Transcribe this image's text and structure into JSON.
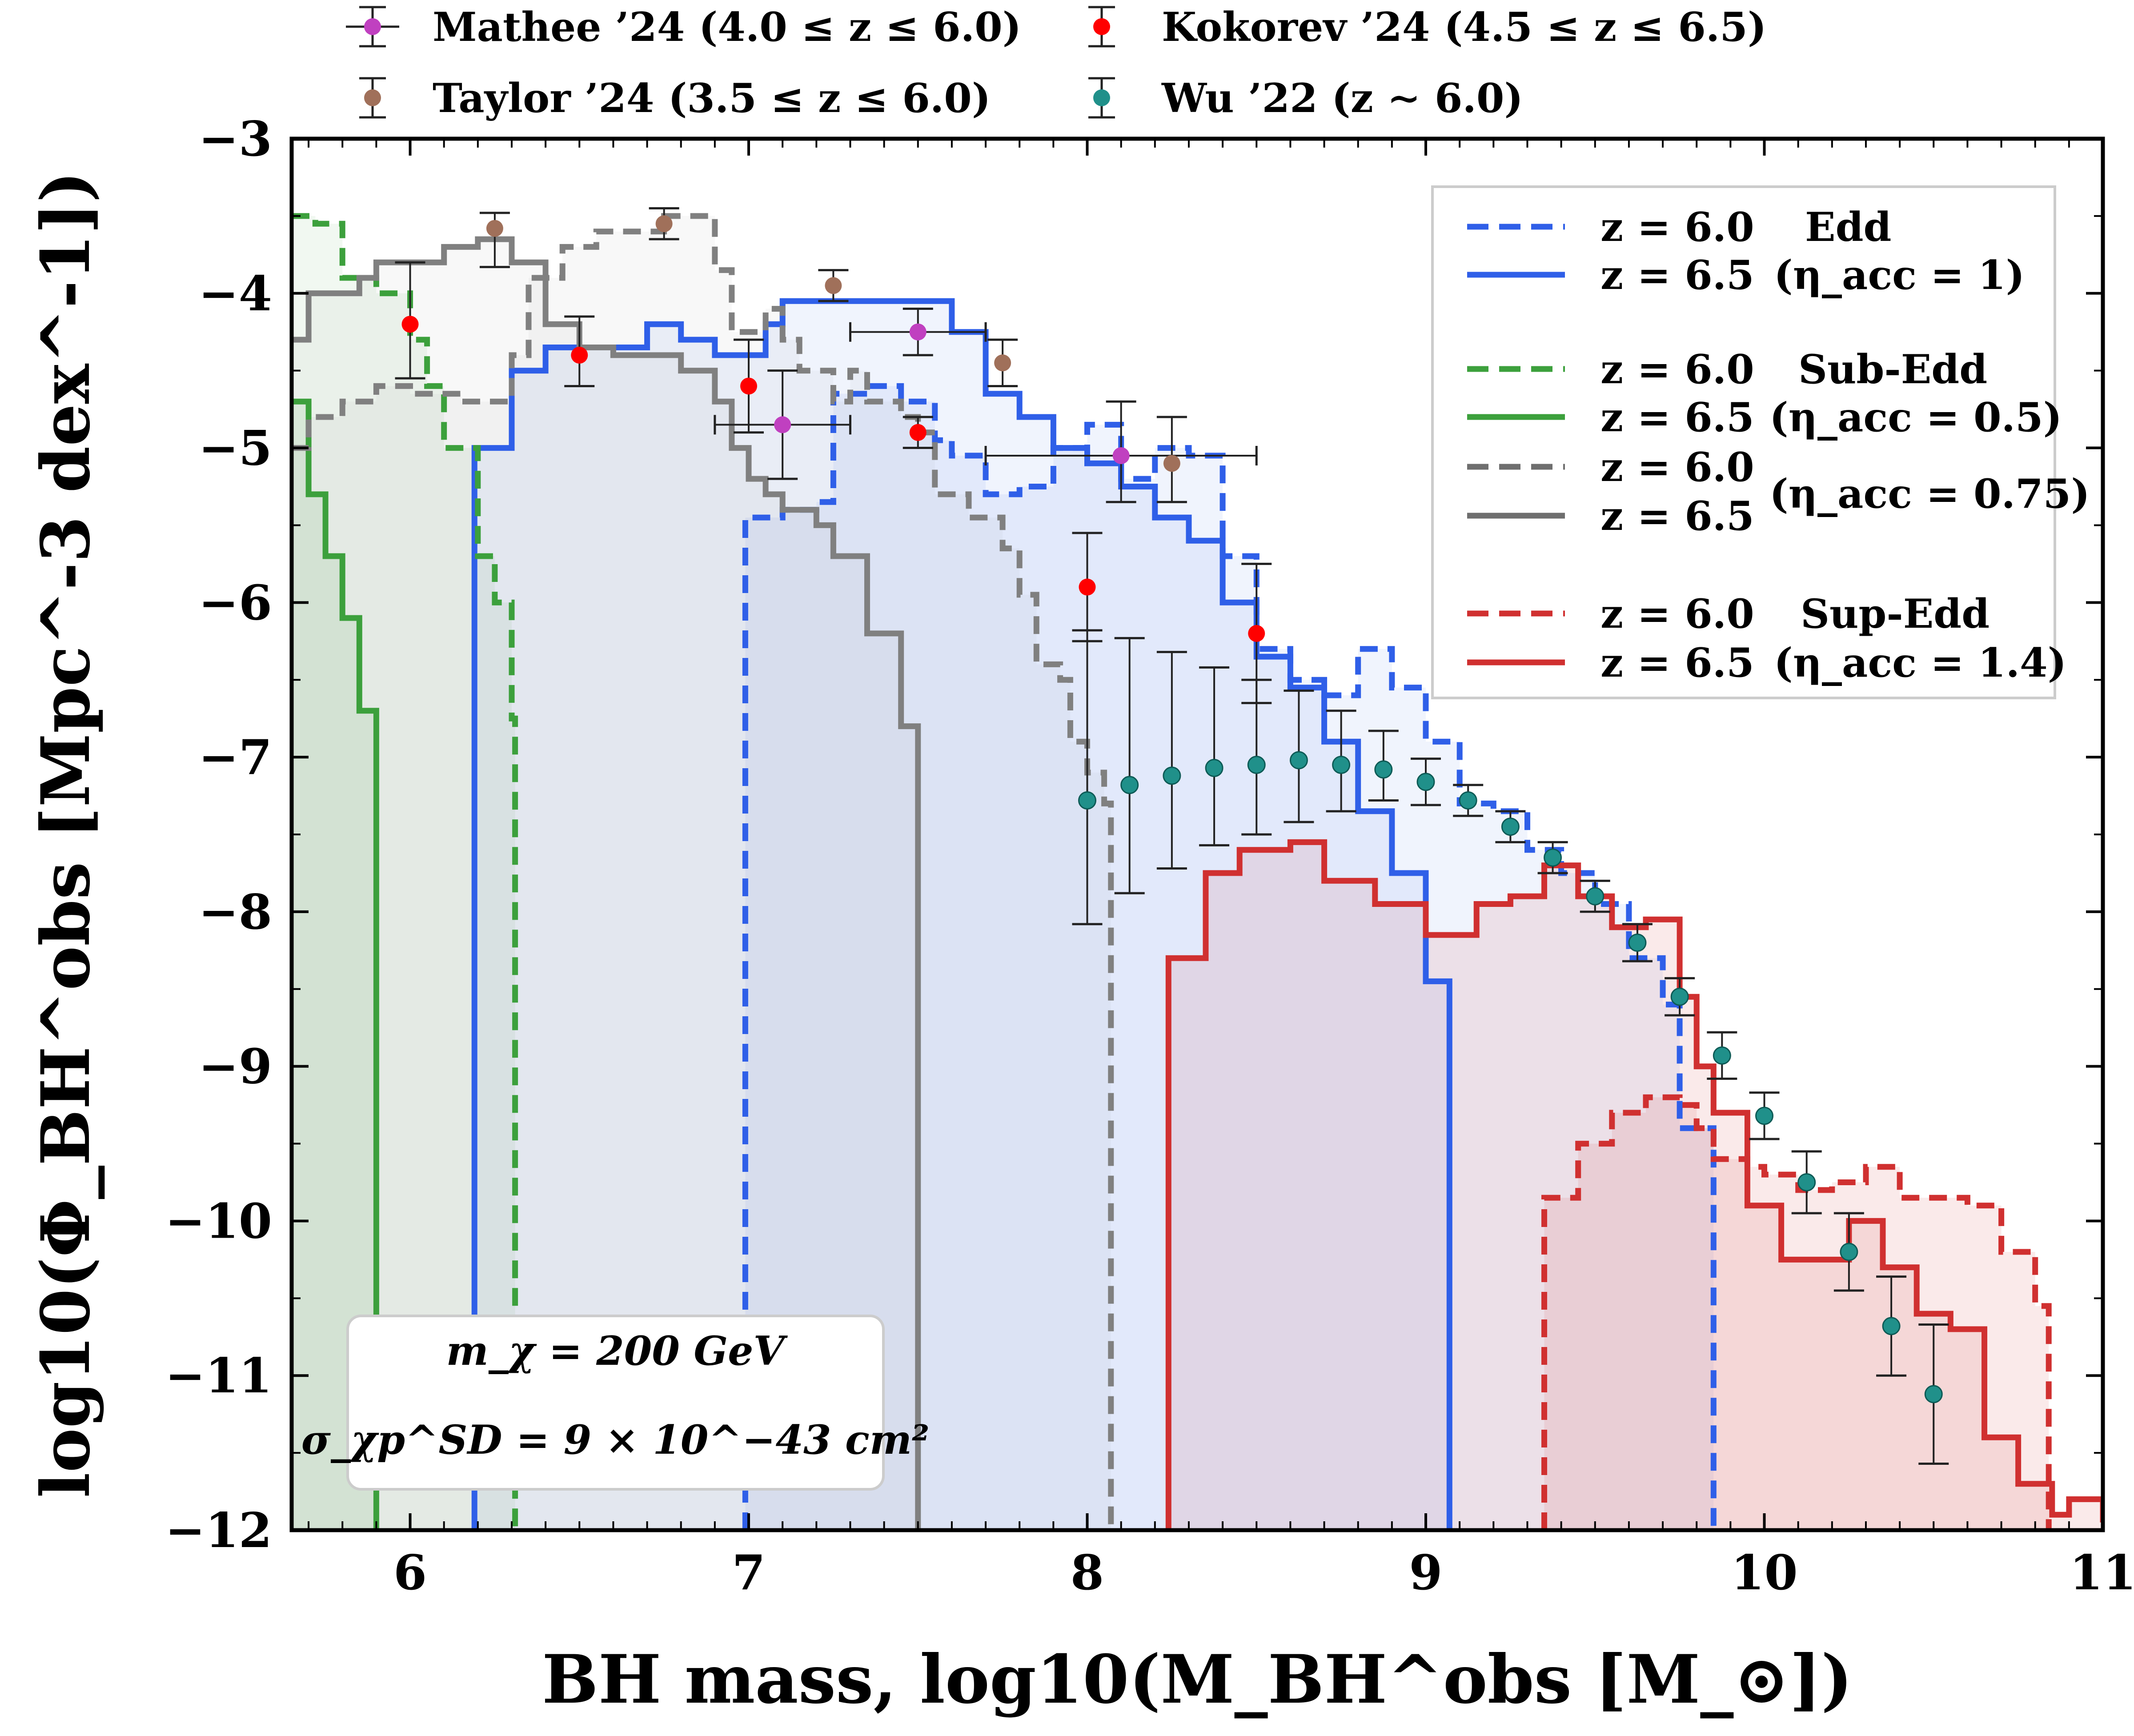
{
  "chart_data": {
    "type": "line",
    "xlabel": "BH mass, log10(M_BH^obs [M_⊙])",
    "ylabel": "log10(Φ_BH^obs [Mpc^-3 dex^-1])",
    "xlim": [
      5.65,
      11.0
    ],
    "ylim": [
      -12,
      -3
    ],
    "x_ticks": [
      "6",
      "7",
      "8",
      "9",
      "10",
      "11"
    ],
    "y_ticks": [
      "−3",
      "−4",
      "−5",
      "−6",
      "−7",
      "−8",
      "−9",
      "−10",
      "−11",
      "−12"
    ],
    "annotation": {
      "line1": "m_χ = 200 GeV",
      "line2": "σ_χp^SD = 9 × 10^−43 cm²"
    },
    "legend_top": [
      {
        "label": "Mathee ’24 (4.0 ≤ z ≤ 6.0)",
        "color": "#c040c0"
      },
      {
        "label": "Kokorev ’24 (4.5 ≤ z ≤ 6.5)",
        "color": "#ff0000"
      },
      {
        "label": "Taylor ’24 (3.5 ≤ z ≤ 6.0)",
        "color": "#a0705a"
      },
      {
        "label": "Wu ’22 (z ∼ 6.0)",
        "color": "#20908a"
      }
    ],
    "legend_right": [
      {
        "z60": "z = 6.0",
        "z65": "z = 6.5",
        "name": "Edd",
        "eta": "(η_acc = 1)",
        "color": "#2f5fe8"
      },
      {
        "z60": "z = 6.0",
        "z65": "z = 6.5",
        "name": "Sub-Edd",
        "eta": "(η_acc = 0.5)",
        "color": "#3ca03c"
      },
      {
        "z60": "z = 6.0",
        "z65": "z = 6.5",
        "name": "",
        "eta": "(η_acc = 0.75)",
        "color": "#6e6e6e"
      },
      {
        "z60": "z = 6.0",
        "z65": "z = 6.5",
        "name": "Sup-Edd",
        "eta": "(η_acc = 1.4)",
        "color": "#d03030"
      }
    ],
    "series": [
      {
        "key": "edd_z60",
        "style": "dashed",
        "color": "#2f5fe8",
        "fill": "#2f5fe8",
        "fill_opacity": 0.07,
        "x": [
          6.99,
          6.99,
          7.1,
          7.2,
          7.25,
          7.35,
          7.45,
          7.55,
          7.6,
          7.7,
          7.8,
          7.9,
          8.0,
          8.1,
          8.2,
          8.3,
          8.4,
          8.5,
          8.6,
          8.7,
          8.8,
          8.9,
          9.0,
          9.1,
          9.2,
          9.3,
          9.4,
          9.5,
          9.6,
          9.7,
          9.75,
          9.85,
          9.85
        ],
        "y": [
          -12,
          -5.45,
          -5.4,
          -5.35,
          -4.65,
          -4.6,
          -4.7,
          -4.95,
          -5.05,
          -5.3,
          -5.25,
          -5.0,
          -4.85,
          -5.2,
          -5.0,
          -5.05,
          -5.7,
          -6.3,
          -6.5,
          -6.6,
          -6.3,
          -6.55,
          -6.9,
          -7.3,
          -7.35,
          -7.6,
          -7.75,
          -7.95,
          -8.3,
          -8.6,
          -9.4,
          -9.6,
          -12
        ]
      },
      {
        "key": "edd_z65",
        "style": "solid",
        "color": "#2f5fe8",
        "fill": "#2f5fe8",
        "fill_opacity": 0.07,
        "x": [
          6.19,
          6.19,
          6.3,
          6.4,
          6.7,
          6.8,
          6.9,
          7.05,
          7.1,
          7.6,
          7.7,
          7.8,
          7.9,
          8.0,
          8.1,
          8.2,
          8.3,
          8.4,
          8.5,
          8.6,
          8.7,
          8.8,
          8.9,
          9.0,
          9.07,
          9.07
        ],
        "y": [
          -12,
          -5.0,
          -4.5,
          -4.35,
          -4.2,
          -4.3,
          -4.4,
          -4.2,
          -4.05,
          -4.25,
          -4.65,
          -4.8,
          -5.0,
          -5.1,
          -5.25,
          -5.45,
          -5.6,
          -6.0,
          -6.35,
          -6.55,
          -6.9,
          -7.35,
          -7.75,
          -8.45,
          -8.45,
          -12
        ]
      },
      {
        "key": "sub_z60",
        "style": "dashed",
        "color": "#3ca03c",
        "fill": "#3ca03c",
        "fill_opacity": 0.07,
        "x": [
          5.65,
          5.72,
          5.8,
          5.9,
          6.0,
          6.05,
          6.1,
          6.2,
          6.25,
          6.3,
          6.31,
          6.31
        ],
        "y": [
          -3.5,
          -3.55,
          -3.9,
          -4.0,
          -4.3,
          -4.6,
          -5.0,
          -5.7,
          -6.0,
          -6.75,
          -6.75,
          -12
        ]
      },
      {
        "key": "sub_z65",
        "style": "solid",
        "color": "#3ca03c",
        "fill": "#3ca03c",
        "fill_opacity": 0.1,
        "x": [
          5.65,
          5.7,
          5.75,
          5.8,
          5.85,
          5.9,
          5.9
        ],
        "y": [
          -4.7,
          -5.3,
          -5.7,
          -6.1,
          -6.7,
          -7.3,
          -12
        ]
      },
      {
        "key": "mid_z60",
        "style": "dashed",
        "color": "#808080",
        "fill": "#808080",
        "fill_opacity": 0.06,
        "x": [
          5.65,
          5.7,
          5.8,
          5.9,
          6.0,
          6.1,
          6.15,
          6.2,
          6.3,
          6.35,
          6.45,
          6.55,
          6.75,
          6.9,
          6.95,
          7.05,
          7.1,
          7.15,
          7.25,
          7.3,
          7.35,
          7.45,
          7.5,
          7.55,
          7.65,
          7.75,
          7.8,
          7.85,
          7.92,
          7.95,
          8.0,
          8.05,
          8.07,
          8.07
        ],
        "y": [
          -5.0,
          -4.8,
          -4.7,
          -4.6,
          -4.65,
          -4.65,
          -4.7,
          -4.7,
          -4.4,
          -3.9,
          -3.7,
          -3.6,
          -3.5,
          -3.85,
          -4.25,
          -4.1,
          -4.3,
          -4.5,
          -4.7,
          -4.5,
          -4.7,
          -4.8,
          -4.9,
          -5.3,
          -5.45,
          -5.65,
          -5.95,
          -6.4,
          -6.5,
          -6.9,
          -7.1,
          -7.3,
          -7.3,
          -12
        ]
      },
      {
        "key": "mid_z65",
        "style": "solid",
        "color": "#808080",
        "fill": "#808080",
        "fill_opacity": 0.06,
        "x": [
          5.65,
          5.7,
          5.85,
          5.9,
          6.0,
          6.1,
          6.2,
          6.3,
          6.4,
          6.5,
          6.6,
          6.7,
          6.8,
          6.9,
          6.95,
          7.0,
          7.05,
          7.1,
          7.2,
          7.25,
          7.35,
          7.45,
          7.5,
          7.5
        ],
        "y": [
          -4.3,
          -4.0,
          -3.9,
          -3.8,
          -3.8,
          -3.7,
          -3.65,
          -3.8,
          -4.2,
          -4.35,
          -4.4,
          -4.4,
          -4.5,
          -4.7,
          -5.0,
          -5.2,
          -5.3,
          -5.4,
          -5.5,
          -5.7,
          -6.2,
          -6.8,
          -7.45,
          -12
        ]
      },
      {
        "key": "sup_z60",
        "style": "dashed",
        "color": "#d03030",
        "fill": "#d03030",
        "fill_opacity": 0.1,
        "x": [
          9.35,
          9.35,
          9.45,
          9.55,
          9.65,
          9.75,
          9.8,
          9.85,
          9.95,
          10.0,
          10.1,
          10.2,
          10.3,
          10.4,
          10.5,
          10.6,
          10.7,
          10.8,
          10.84,
          10.84
        ],
        "y": [
          -12,
          -9.85,
          -9.5,
          -9.3,
          -9.2,
          -9.25,
          -9.4,
          -9.6,
          -9.65,
          -9.7,
          -9.8,
          -9.75,
          -9.65,
          -9.85,
          -9.85,
          -9.9,
          -10.2,
          -10.55,
          -10.6,
          -12
        ]
      },
      {
        "key": "sup_z65",
        "style": "solid",
        "color": "#d03030",
        "fill": "#d03030",
        "fill_opacity": 0.1,
        "x": [
          8.24,
          8.24,
          8.35,
          8.45,
          8.6,
          8.7,
          8.85,
          9.0,
          9.15,
          9.25,
          9.35,
          9.45,
          9.55,
          9.65,
          9.75,
          9.8,
          9.85,
          9.95,
          10.05,
          10.15,
          10.25,
          10.35,
          10.45,
          10.55,
          10.65,
          10.75,
          10.85,
          10.9,
          11.0
        ],
        "y": [
          -12,
          -8.3,
          -7.75,
          -7.6,
          -7.55,
          -7.8,
          -7.95,
          -8.15,
          -7.95,
          -7.9,
          -7.7,
          -7.9,
          -8.1,
          -8.05,
          -8.55,
          -9.0,
          -9.3,
          -9.9,
          -10.25,
          -10.25,
          -10.0,
          -10.3,
          -10.6,
          -10.7,
          -11.4,
          -11.7,
          -11.9,
          -11.8,
          -11.95
        ]
      }
    ],
    "observations": [
      {
        "name": "Mathee ’24",
        "color": "#c040c0",
        "points": [
          {
            "x": 7.1,
            "y": -4.85,
            "yerr": [
              0.35,
              0.35
            ],
            "xerr": [
              0.2,
              0.2
            ]
          },
          {
            "x": 7.5,
            "y": -4.25,
            "yerr": [
              0.15,
              0.15
            ],
            "xerr": [
              0.2,
              0.2
            ]
          },
          {
            "x": 8.1,
            "y": -5.05,
            "yerr": [
              0.3,
              0.35
            ],
            "xerr": [
              0.4,
              0.4
            ]
          }
        ]
      },
      {
        "name": "Taylor ’24",
        "color": "#a0705a",
        "points": [
          {
            "x": 6.25,
            "y": -3.58,
            "yerr": [
              0.25,
              0.1
            ],
            "xerr": [
              0,
              0
            ]
          },
          {
            "x": 6.75,
            "y": -3.55,
            "yerr": [
              0.1,
              0.1
            ],
            "xerr": [
              0,
              0
            ]
          },
          {
            "x": 7.25,
            "y": -3.95,
            "yerr": [
              0.1,
              0.1
            ],
            "xerr": [
              0,
              0
            ]
          },
          {
            "x": 7.75,
            "y": -4.45,
            "yerr": [
              0.15,
              0.15
            ],
            "xerr": [
              0,
              0
            ]
          },
          {
            "x": 8.25,
            "y": -5.1,
            "yerr": [
              0.25,
              0.3
            ],
            "xerr": [
              0,
              0
            ]
          }
        ]
      },
      {
        "name": "Kokorev ’24",
        "color": "#ff0000",
        "points": [
          {
            "x": 6.0,
            "y": -4.2,
            "yerr": [
              0.35,
              0.4
            ],
            "xerr": [
              0,
              0
            ]
          },
          {
            "x": 6.5,
            "y": -4.4,
            "yerr": [
              0.2,
              0.25
            ],
            "xerr": [
              0,
              0
            ]
          },
          {
            "x": 7.0,
            "y": -4.6,
            "yerr": [
              0.3,
              0.3
            ],
            "xerr": [
              0,
              0
            ]
          },
          {
            "x": 7.5,
            "y": -4.9,
            "yerr": [
              0.1,
              0.1
            ],
            "xerr": [
              0,
              0
            ]
          },
          {
            "x": 8.0,
            "y": -5.9,
            "yerr": [
              0.35,
              0.35
            ],
            "xerr": [
              0,
              0
            ]
          },
          {
            "x": 8.5,
            "y": -6.2,
            "yerr": [
              0.45,
              0.45
            ],
            "xerr": [
              0,
              0
            ]
          }
        ]
      },
      {
        "name": "Wu ’22",
        "color": "#20908a",
        "points": [
          {
            "x": 8.0,
            "y": -7.28,
            "yerr": [
              0.8,
              1.1
            ],
            "xerr": [
              0,
              0
            ]
          },
          {
            "x": 8.125,
            "y": -7.18,
            "yerr": [
              0.7,
              0.95
            ],
            "xerr": [
              0,
              0
            ]
          },
          {
            "x": 8.25,
            "y": -7.12,
            "yerr": [
              0.6,
              0.8
            ],
            "xerr": [
              0,
              0
            ]
          },
          {
            "x": 8.375,
            "y": -7.07,
            "yerr": [
              0.5,
              0.65
            ],
            "xerr": [
              0,
              0
            ]
          },
          {
            "x": 8.5,
            "y": -7.05,
            "yerr": [
              0.45,
              0.55
            ],
            "xerr": [
              0,
              0
            ]
          },
          {
            "x": 8.625,
            "y": -7.02,
            "yerr": [
              0.4,
              0.45
            ],
            "xerr": [
              0,
              0
            ]
          },
          {
            "x": 8.75,
            "y": -7.05,
            "yerr": [
              0.3,
              0.35
            ],
            "xerr": [
              0,
              0
            ]
          },
          {
            "x": 8.875,
            "y": -7.08,
            "yerr": [
              0.2,
              0.25
            ],
            "xerr": [
              0,
              0
            ]
          },
          {
            "x": 9.0,
            "y": -7.16,
            "yerr": [
              0.15,
              0.15
            ],
            "xerr": [
              0,
              0
            ]
          },
          {
            "x": 9.125,
            "y": -7.28,
            "yerr": [
              0.1,
              0.1
            ],
            "xerr": [
              0,
              0
            ]
          },
          {
            "x": 9.25,
            "y": -7.45,
            "yerr": [
              0.1,
              0.1
            ],
            "xerr": [
              0,
              0
            ]
          },
          {
            "x": 9.375,
            "y": -7.65,
            "yerr": [
              0.1,
              0.1
            ],
            "xerr": [
              0,
              0
            ]
          },
          {
            "x": 9.5,
            "y": -7.9,
            "yerr": [
              0.1,
              0.1
            ],
            "xerr": [
              0,
              0
            ]
          },
          {
            "x": 9.625,
            "y": -8.2,
            "yerr": [
              0.12,
              0.12
            ],
            "xerr": [
              0,
              0
            ]
          },
          {
            "x": 9.75,
            "y": -8.55,
            "yerr": [
              0.12,
              0.12
            ],
            "xerr": [
              0,
              0
            ]
          },
          {
            "x": 9.875,
            "y": -8.93,
            "yerr": [
              0.15,
              0.15
            ],
            "xerr": [
              0,
              0
            ]
          },
          {
            "x": 10.0,
            "y": -9.32,
            "yerr": [
              0.15,
              0.15
            ],
            "xerr": [
              0,
              0
            ]
          },
          {
            "x": 10.125,
            "y": -9.75,
            "yerr": [
              0.2,
              0.2
            ],
            "xerr": [
              0,
              0
            ]
          },
          {
            "x": 10.25,
            "y": -10.2,
            "yerr": [
              0.25,
              0.25
            ],
            "xerr": [
              0,
              0
            ]
          },
          {
            "x": 10.375,
            "y": -10.68,
            "yerr": [
              0.32,
              0.32
            ],
            "xerr": [
              0,
              0
            ]
          },
          {
            "x": 10.5,
            "y": -11.12,
            "yerr": [
              0.45,
              0.45
            ],
            "xerr": [
              0,
              0
            ]
          }
        ]
      }
    ]
  }
}
